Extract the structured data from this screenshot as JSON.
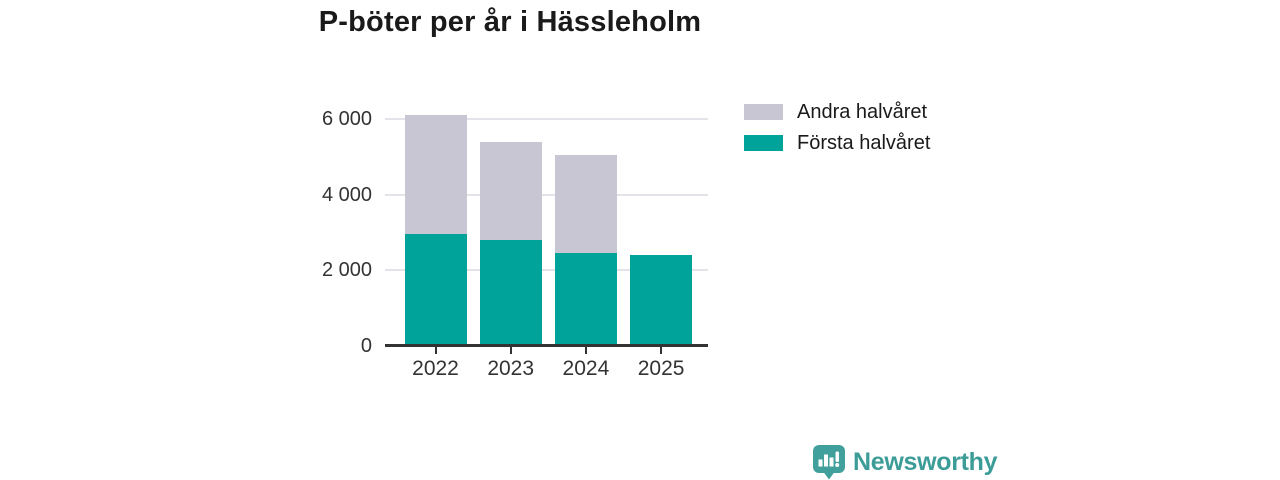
{
  "title": "P-böter per år i Hässleholm",
  "chart_data": {
    "type": "bar",
    "stacked": true,
    "title": "P-böter per år i Hässleholm",
    "categories": [
      "2022",
      "2023",
      "2024",
      "2025"
    ],
    "series": [
      {
        "name": "Första halvåret",
        "color": "#00a39a",
        "values": [
          2950,
          2800,
          2450,
          2400
        ]
      },
      {
        "name": "Andra halvåret",
        "color": "#c8c6d2",
        "values": [
          3150,
          2600,
          2600,
          0
        ]
      }
    ],
    "totals": [
      6100,
      5400,
      5050,
      2400
    ],
    "xlabel": "",
    "ylabel": "",
    "ylim": [
      0,
      6000
    ],
    "yticks": [
      0,
      2000,
      4000,
      6000
    ],
    "ytick_labels": [
      "0",
      "2 000",
      "4 000",
      "6 000"
    ],
    "grid": true,
    "legend_position": "right-of-plot"
  },
  "legend": {
    "items": [
      {
        "label": "Andra halvåret",
        "color": "#c8c6d2"
      },
      {
        "label": "Första halvåret",
        "color": "#00a39a"
      }
    ]
  },
  "branding": {
    "name": "Newsworthy",
    "color": "#3c9c98",
    "icon": "newsworthy-bubble-barchart-icon"
  },
  "colors": {
    "axis": "#333333",
    "grid": "#e4e3e9",
    "title": "#1a1a1a",
    "background": "#ffffff"
  }
}
